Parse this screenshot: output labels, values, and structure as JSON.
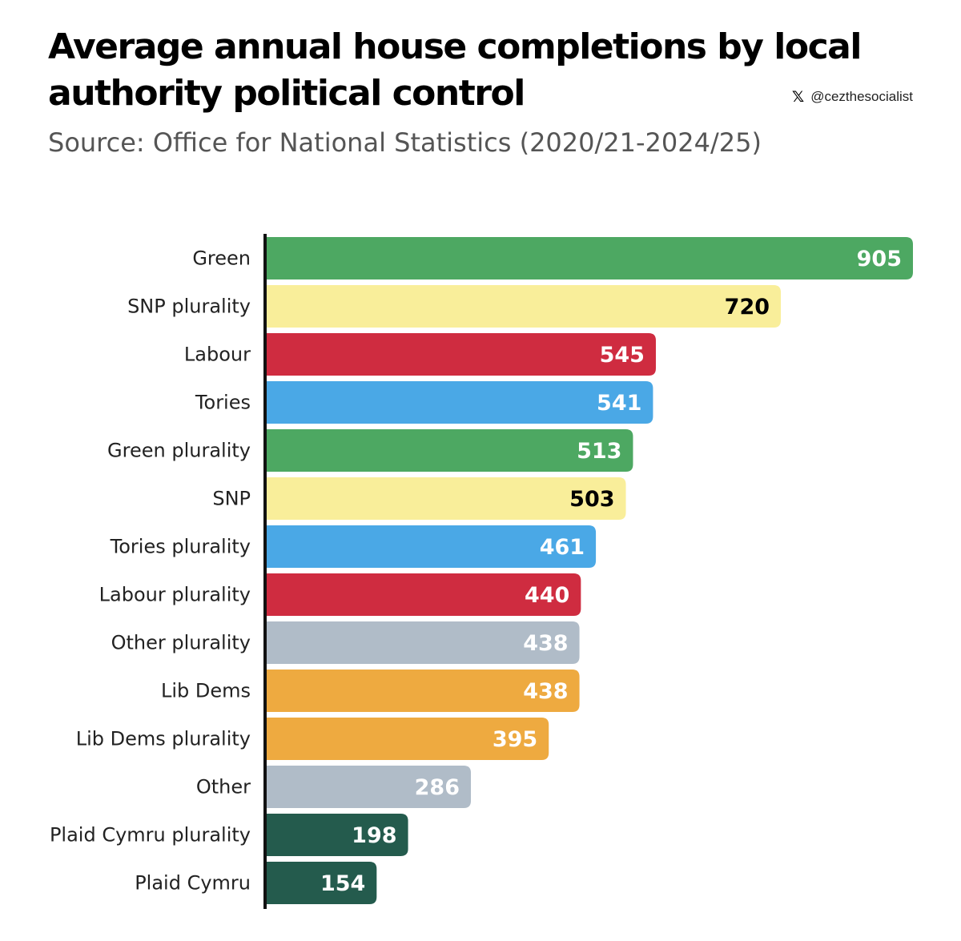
{
  "chart_data": {
    "type": "bar",
    "orientation": "horizontal",
    "title": "Average annual house completions by local authority political control",
    "subtitle": "Source: Office for National Statistics (2020/21-2024/25)",
    "credit": "@cezthesocialist",
    "categories": [
      "Green",
      "SNP plurality",
      "Labour",
      "Tories",
      "Green plurality",
      "SNP",
      "Tories plurality",
      "Labour plurality",
      "Other plurality",
      "Lib Dems",
      "Lib Dems plurality",
      "Other",
      "Plaid Cymru plurality",
      "Plaid Cymru"
    ],
    "values": [
      905,
      720,
      545,
      541,
      513,
      503,
      461,
      440,
      438,
      438,
      395,
      286,
      198,
      154
    ],
    "colors": [
      "#4da862",
      "#f9ee9a",
      "#cf2c40",
      "#4aa8e6",
      "#4da862",
      "#f9ee9a",
      "#4aa8e6",
      "#cf2c40",
      "#b0bcc8",
      "#eeaa40",
      "#eeaa40",
      "#b0bcc8",
      "#245b4d",
      "#245b4d"
    ],
    "label_colors": [
      "#ffffff",
      "#000000",
      "#ffffff",
      "#ffffff",
      "#ffffff",
      "#000000",
      "#ffffff",
      "#ffffff",
      "#ffffff",
      "#ffffff",
      "#ffffff",
      "#ffffff",
      "#ffffff",
      "#ffffff"
    ],
    "xlim": [
      0,
      905
    ],
    "grid": false,
    "legend": "none"
  }
}
